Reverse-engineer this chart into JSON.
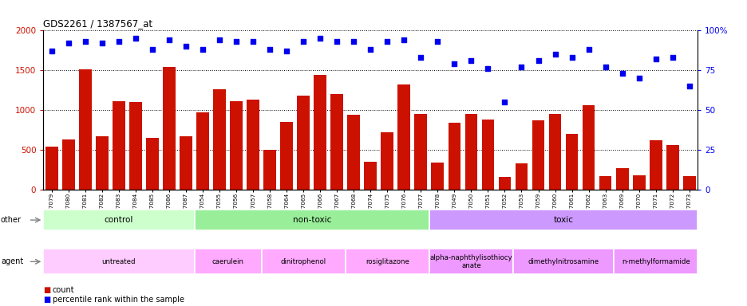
{
  "title": "GDS2261 / 1387567_at",
  "samples": [
    "GSM127079",
    "GSM127080",
    "GSM127081",
    "GSM127082",
    "GSM127083",
    "GSM127084",
    "GSM127085",
    "GSM127086",
    "GSM127087",
    "GSM127054",
    "GSM127055",
    "GSM127056",
    "GSM127057",
    "GSM127058",
    "GSM127064",
    "GSM127065",
    "GSM127066",
    "GSM127067",
    "GSM127068",
    "GSM127074",
    "GSM127075",
    "GSM127076",
    "GSM127077",
    "GSM127078",
    "GSM127049",
    "GSM127050",
    "GSM127051",
    "GSM127052",
    "GSM127053",
    "GSM127059",
    "GSM127060",
    "GSM127061",
    "GSM127062",
    "GSM127063",
    "GSM127069",
    "GSM127070",
    "GSM127071",
    "GSM127072",
    "GSM127073"
  ],
  "counts": [
    540,
    630,
    1510,
    670,
    1110,
    1100,
    650,
    1545,
    670,
    970,
    1260,
    1110,
    1130,
    500,
    850,
    1180,
    1440,
    1200,
    940,
    350,
    720,
    1320,
    950,
    340,
    840,
    950,
    880,
    160,
    330,
    870,
    950,
    700,
    1060,
    170,
    270,
    180,
    620,
    560,
    175
  ],
  "percentiles": [
    87,
    92,
    93,
    92,
    93,
    95,
    88,
    94,
    90,
    88,
    94,
    93,
    93,
    88,
    87,
    93,
    95,
    93,
    93,
    88,
    93,
    94,
    83,
    93,
    79,
    81,
    76,
    55,
    77,
    81,
    85,
    83,
    88,
    77,
    73,
    70,
    82,
    83,
    65
  ],
  "bar_color": "#cc1100",
  "dot_color": "#0000ee",
  "ylim_left": [
    0,
    2000
  ],
  "ylim_right": [
    0,
    100
  ],
  "yticks_left": [
    0,
    500,
    1000,
    1500,
    2000
  ],
  "yticks_right": [
    0,
    25,
    50,
    75,
    100
  ],
  "groups_other": [
    {
      "label": "control",
      "start": 0,
      "end": 9,
      "color": "#ccffcc"
    },
    {
      "label": "non-toxic",
      "start": 9,
      "end": 23,
      "color": "#99ee99"
    },
    {
      "label": "toxic",
      "start": 23,
      "end": 39,
      "color": "#cc99ff"
    }
  ],
  "groups_agent": [
    {
      "label": "untreated",
      "start": 0,
      "end": 9,
      "color": "#ffccff"
    },
    {
      "label": "caerulein",
      "start": 9,
      "end": 13,
      "color": "#ffaaff"
    },
    {
      "label": "dinitrophenol",
      "start": 13,
      "end": 18,
      "color": "#ffaaff"
    },
    {
      "label": "rosiglitazone",
      "start": 18,
      "end": 23,
      "color": "#ffaaff"
    },
    {
      "label": "alpha-naphthylisothiocy\nanate",
      "start": 23,
      "end": 28,
      "color": "#ee99ff"
    },
    {
      "label": "dimethylnitrosamine",
      "start": 28,
      "end": 34,
      "color": "#ee99ff"
    },
    {
      "label": "n-methylformamide",
      "start": 34,
      "end": 39,
      "color": "#ee99ff"
    }
  ]
}
